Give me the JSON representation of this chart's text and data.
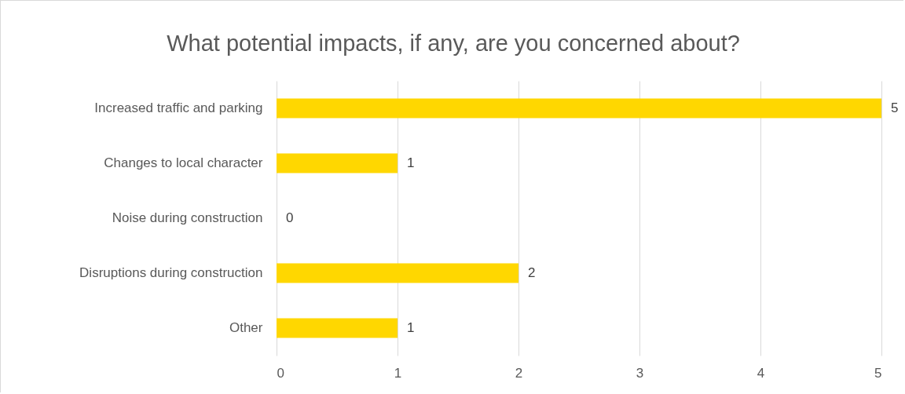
{
  "chart_data": {
    "type": "bar",
    "orientation": "horizontal",
    "title": "What potential impacts, if any, are you concerned about?",
    "categories": [
      "Increased traffic and parking",
      "Changes to local character",
      "Noise during construction",
      "Disruptions during construction",
      "Other"
    ],
    "values": [
      5,
      1,
      0,
      2,
      1
    ],
    "color": "#ffd700",
    "xlim": [
      0,
      5
    ],
    "xticks": [
      0,
      1,
      2,
      3,
      4,
      5
    ],
    "grid": "x",
    "data_labels": true
  }
}
